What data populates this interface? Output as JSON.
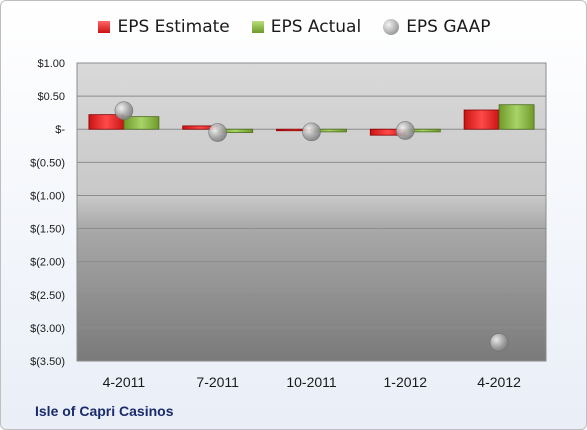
{
  "company": "Isle of Capri Casinos",
  "chart_data": {
    "type": "bar",
    "categories": [
      "4-2011",
      "7-2011",
      "10-2011",
      "1-2012",
      "4-2012"
    ],
    "series": [
      {
        "name": "EPS Estimate",
        "kind": "bar",
        "color": "#e02020",
        "values": [
          0.22,
          0.05,
          -0.02,
          -0.09,
          0.29
        ]
      },
      {
        "name": "EPS Actual",
        "kind": "bar",
        "color": "#8ab848",
        "values": [
          0.19,
          -0.05,
          -0.04,
          -0.04,
          0.37
        ]
      },
      {
        "name": "EPS GAAP",
        "kind": "point",
        "color": "#a6a6a6",
        "values": [
          0.28,
          -0.05,
          -0.04,
          -0.02,
          -3.22
        ]
      }
    ],
    "ylim": [
      -3.5,
      1.0
    ],
    "yticks": [
      1.0,
      0.5,
      0.0,
      -0.5,
      -1.0,
      -1.5,
      -2.0,
      -2.5,
      -3.0,
      -3.5
    ],
    "ytick_labels": [
      "$1.00",
      "$0.50",
      "$-",
      "$(0.50)",
      "$(1.00)",
      "$(1.50)",
      "$(2.00)",
      "$(2.50)",
      "$(3.00)",
      "$(3.50)"
    ],
    "grid": true,
    "legend": "top"
  }
}
